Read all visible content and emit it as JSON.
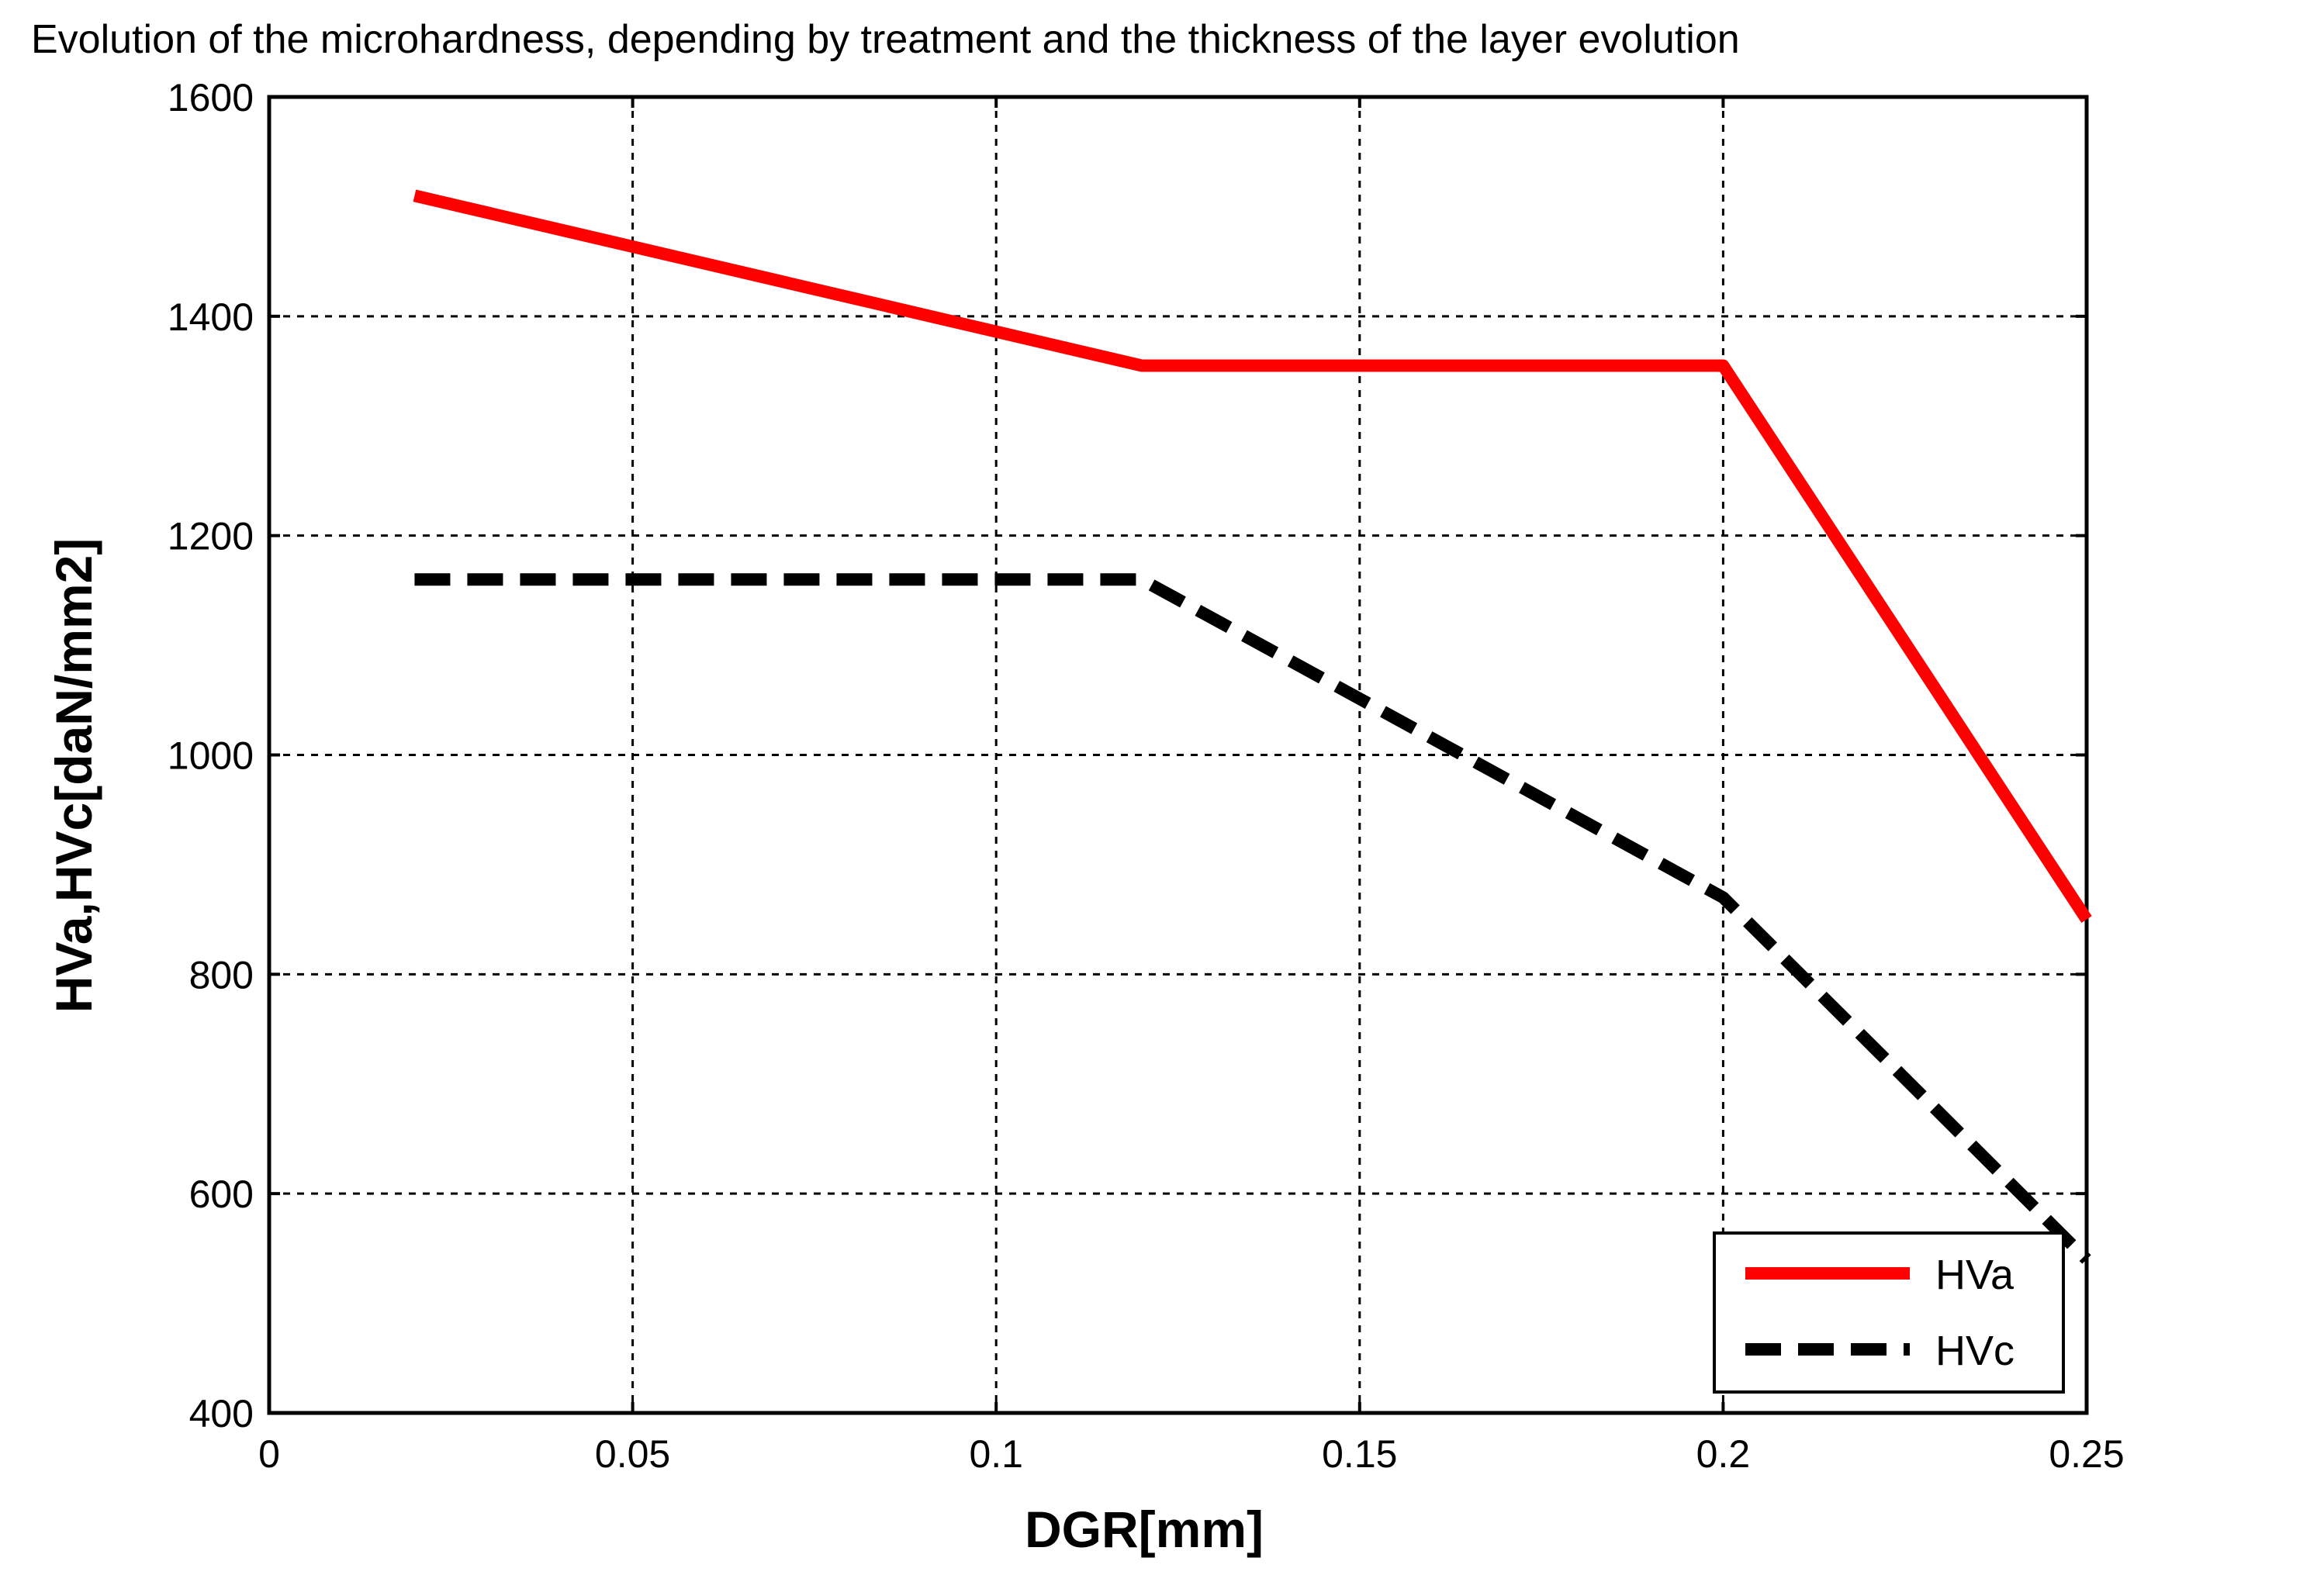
{
  "chart_data": {
    "type": "line",
    "title": "Evolution of the microhardness, depending by treatment and the thickness of the layer evolution",
    "xlabel": "DGR[mm]",
    "ylabel": "HVa,HVc[daN/mm2]",
    "xlim": [
      0,
      0.25
    ],
    "ylim": [
      400,
      1600
    ],
    "xticks": [
      0,
      0.05,
      0.1,
      0.15,
      0.2,
      0.25
    ],
    "xtick_labels": [
      "0",
      "0.05",
      "0.1",
      "0.15",
      "0.2",
      "0.25"
    ],
    "yticks": [
      400,
      600,
      800,
      1000,
      1200,
      1400,
      1600
    ],
    "ytick_labels": [
      "400",
      "600",
      "800",
      "1000",
      "1200",
      "1400",
      "1600"
    ],
    "grid": true,
    "legend_position": "bottom-right",
    "series": [
      {
        "name": "HVa",
        "color": "#ff0000",
        "style": "solid",
        "x": [
          0.02,
          0.12,
          0.2,
          0.25
        ],
        "y": [
          1510,
          1355,
          1355,
          850
        ]
      },
      {
        "name": "HVc",
        "color": "#000000",
        "style": "dashed",
        "x": [
          0.02,
          0.12,
          0.2,
          0.25
        ],
        "y": [
          1160,
          1160,
          870,
          540
        ]
      }
    ]
  }
}
